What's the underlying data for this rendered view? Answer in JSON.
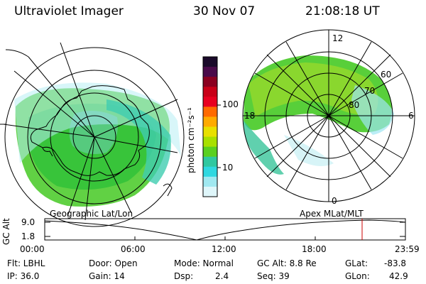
{
  "header": {
    "instrument": "Ultraviolet Imager",
    "date": "30 Nov 07",
    "time": "21:08:18 UT"
  },
  "colorbar": {
    "unit_label": "photon cm⁻²s⁻¹",
    "ticks": [
      "100",
      "10"
    ],
    "colors": [
      "#1a0a2a",
      "#4a0a4a",
      "#8a0020",
      "#c80018",
      "#e80020",
      "#ff6a00",
      "#ffaa00",
      "#e8e000",
      "#a8e000",
      "#5ad020",
      "#30c8a0",
      "#30d8e0",
      "#a0e8f0",
      "#dff6fa"
    ]
  },
  "left_panel": {
    "projection_label": "Geographic Lat/Lon"
  },
  "right_panel": {
    "projection_label": "Apex  MLat/MLT",
    "mlt_labels": {
      "top": "12",
      "left": "18",
      "right": "6",
      "bottom": "0"
    },
    "mlat_labels": [
      "60",
      "70",
      "80"
    ]
  },
  "altitude_plot": {
    "ylabel": "GC Alt",
    "yticks": [
      "9.0",
      "1.8"
    ],
    "xticks": [
      "00:00",
      "06:00",
      "12:00",
      "18:00",
      "23:59"
    ],
    "marker_color": "#cc0000"
  },
  "info": {
    "filter": "Flt: LBHL",
    "ip": "IP: 36.0",
    "door": "Door: Open",
    "gain": "Gain: 14",
    "mode": "Mode: Normal",
    "dsp_label": "Dsp:",
    "dsp_value": "2.4",
    "gc_alt": "GC Alt: 8.8 Re",
    "seq": "Seq: 39",
    "glat_label": "GLat:",
    "glat_value": "-83.8",
    "glon_label": "GLon:",
    "glon_value": "42.9"
  }
}
